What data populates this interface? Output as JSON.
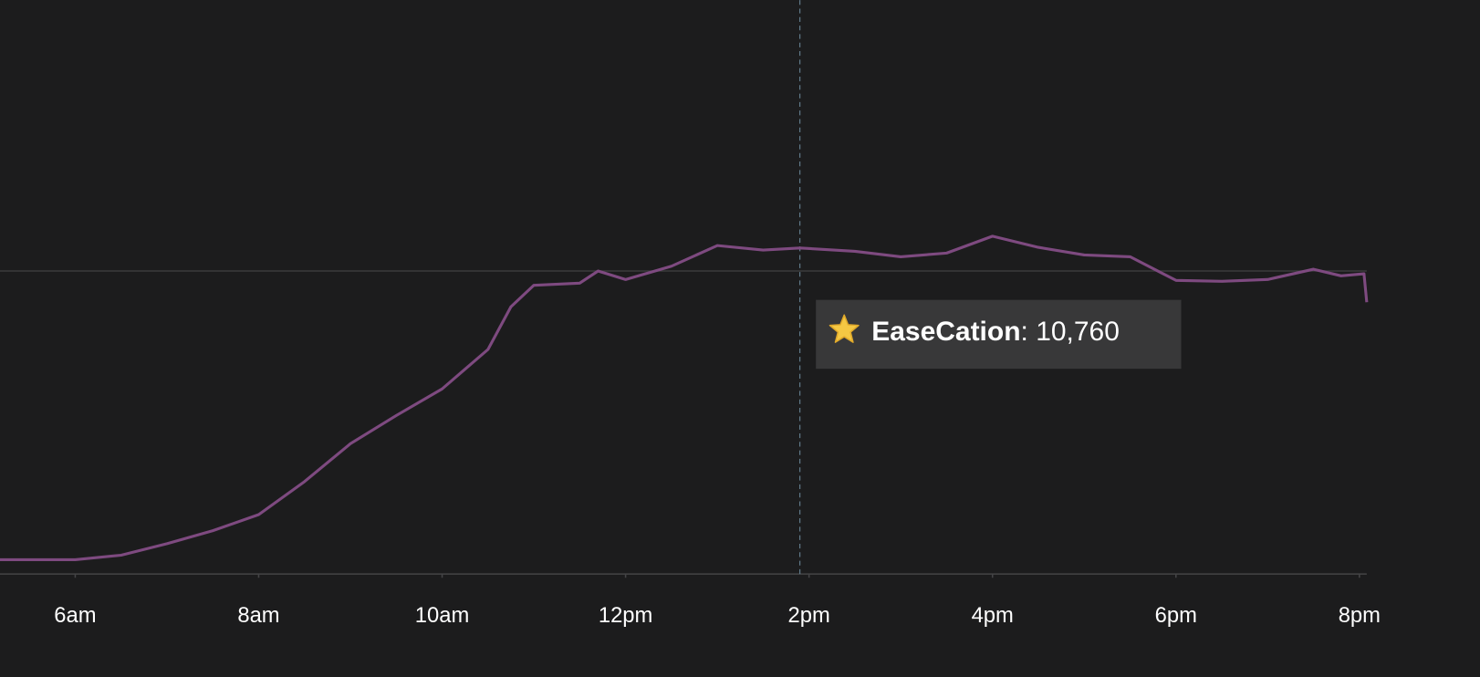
{
  "chart_data": {
    "type": "line",
    "x": [
      5.18,
      6,
      6.5,
      7,
      7.5,
      8,
      8.5,
      9,
      9.5,
      10,
      10.5,
      10.75,
      11,
      11.5,
      11.7,
      12,
      12.5,
      13,
      13.5,
      13.9,
      14.5,
      15,
      15.5,
      16,
      16.5,
      17,
      17.5,
      18,
      18.5,
      19,
      19.5,
      19.8,
      20.05,
      20.08
    ],
    "series": [
      {
        "name": "EaseCation",
        "color": "#7e4a80",
        "values": [
          470,
          470,
          620,
          1000,
          1430,
          1960,
          3050,
          4300,
          5230,
          6110,
          7410,
          8820,
          9530,
          9600,
          10000,
          9720,
          10160,
          10840,
          10690,
          10760,
          10650,
          10470,
          10590,
          11150,
          10780,
          10530,
          10470,
          9690,
          9660,
          9720,
          10060,
          9840,
          9910,
          8970
        ]
      }
    ],
    "xlim": [
      5.18,
      20.08
    ],
    "xticks": [
      {
        "value": 6,
        "label": "6am"
      },
      {
        "value": 8,
        "label": "8am"
      },
      {
        "value": 10,
        "label": "10am"
      },
      {
        "value": 12,
        "label": "12pm"
      },
      {
        "value": 14,
        "label": "2pm"
      },
      {
        "value": 16,
        "label": "4pm"
      },
      {
        "value": 18,
        "label": "6pm"
      },
      {
        "value": 20,
        "label": "8pm"
      }
    ],
    "ylim": [
      0,
      18940
    ],
    "yticks": [
      0,
      10000
    ],
    "grid": true,
    "tooltip": {
      "x": 13.9,
      "value": 10760,
      "value_label": ": 10,760"
    }
  }
}
